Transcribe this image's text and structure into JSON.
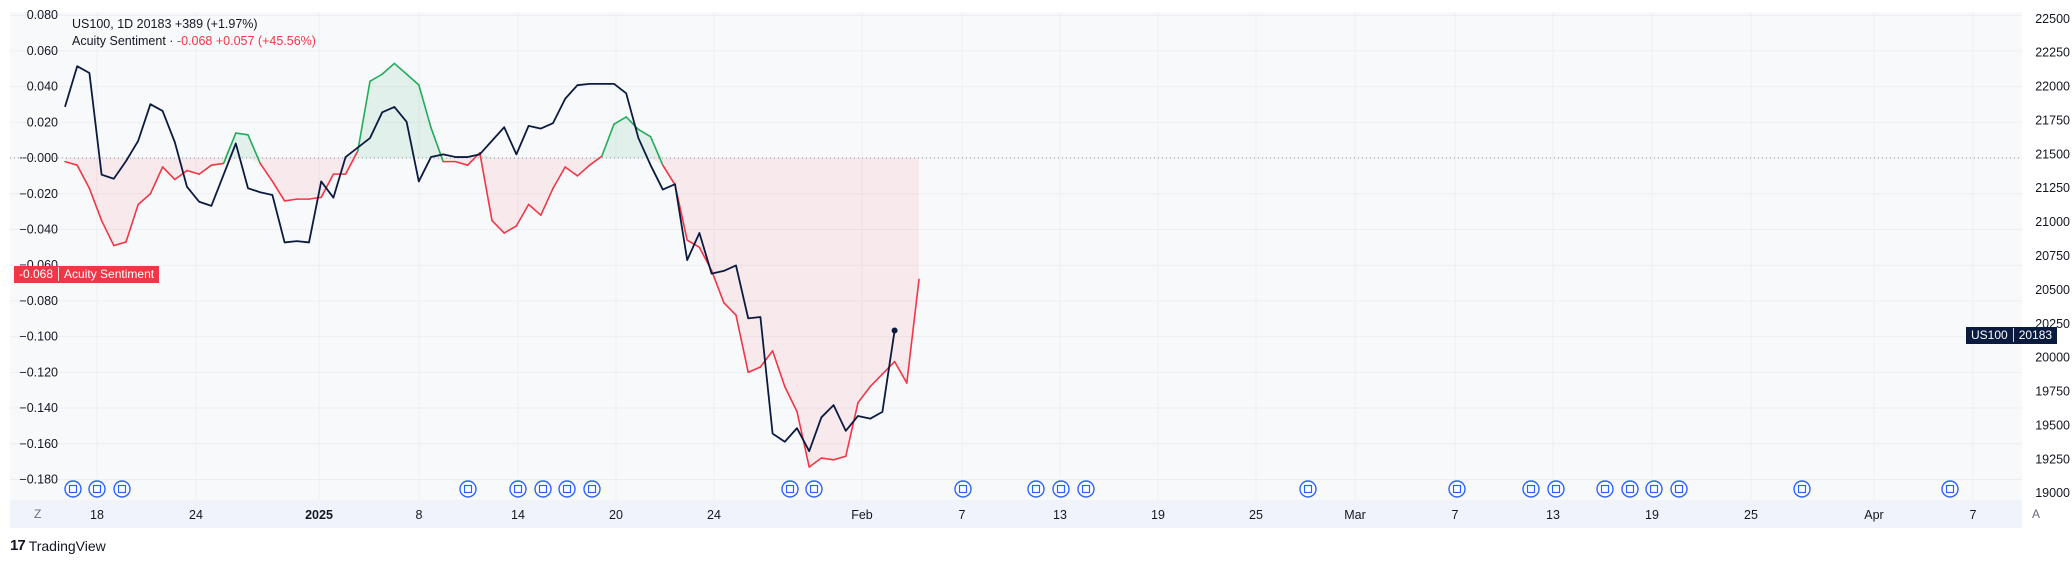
{
  "legend": {
    "main_symbol": "US100",
    "main_tf": "1D",
    "main_values": "20183  +389 (+1.97%)",
    "ind_name": "Acuity Sentiment",
    "ind_dot": "·",
    "ind_values": "-0.068  +0.057 (+45.56%)"
  },
  "tags": {
    "sent_value": "-0.068",
    "sent_name": "Acuity Sentiment",
    "price_symbol": "US100",
    "price_value": "20183"
  },
  "footer": {
    "brand_text": "TradingView",
    "left_corner": "Z",
    "right_corner": "A"
  },
  "chart_data": {
    "type": "line",
    "x_tick_labels": [
      "18",
      "24",
      "2025",
      "8",
      "14",
      "20",
      "24",
      "Feb",
      "7",
      "13",
      "19",
      "25",
      "Mar",
      "7",
      "13",
      "19",
      "25",
      "Apr",
      "7"
    ],
    "y_left_ticks": [
      "0.080",
      "0.060",
      "0.040",
      "0.020",
      "−0.000",
      "−0.020",
      "−0.040",
      "−0.060",
      "−0.080",
      "−0.100",
      "−0.120",
      "−0.140",
      "−0.160",
      "−0.180"
    ],
    "y_left_range": [
      -0.1915,
      0.0818
    ],
    "y_right_ticks": [
      "22500",
      "22250",
      "22000",
      "21750",
      "21500",
      "21250",
      "21000",
      "20750",
      "20500",
      "20250",
      "20000",
      "19750",
      "19500",
      "19250",
      "19000"
    ],
    "y_right_range": [
      18950,
      22550
    ],
    "series": [
      {
        "name": "US100",
        "axis": "right",
        "color": "#0b1b3f",
        "values": [
          21850,
          22150,
          22100,
          21350,
          21320,
          21450,
          21600,
          21870,
          21820,
          21590,
          21260,
          21150,
          21120,
          21350,
          21580,
          21250,
          21220,
          21200,
          20850,
          20860,
          20850,
          21300,
          21180,
          21480,
          21550,
          21620,
          21810,
          21850,
          21740,
          21300,
          21480,
          21500,
          21480,
          21480,
          21500,
          21600,
          21700,
          21500,
          21710,
          21690,
          21730,
          21910,
          22010,
          22020,
          22020,
          22020,
          21950,
          21620,
          21420,
          21240,
          21280,
          20720,
          20920,
          20620,
          20640,
          20680,
          20290,
          20300,
          19440,
          19380,
          19480,
          19310,
          19560,
          19650,
          19460,
          19570,
          19550,
          19600,
          20200
        ]
      },
      {
        "name": "Acuity Sentiment",
        "axis": "left",
        "color_negative": "#f23645",
        "color_positive": "#22ab5a",
        "values": [
          -0.002,
          -0.004,
          -0.017,
          -0.035,
          -0.049,
          -0.047,
          -0.026,
          -0.02,
          -0.005,
          -0.012,
          -0.007,
          -0.009,
          -0.004,
          -0.003,
          0.014,
          0.013,
          -0.003,
          -0.013,
          -0.024,
          -0.023,
          -0.023,
          -0.022,
          -0.009,
          -0.009,
          0.004,
          0.043,
          0.047,
          0.053,
          0.047,
          0.041,
          0.017,
          -0.002,
          -0.002,
          -0.004,
          0.003,
          -0.035,
          -0.042,
          -0.038,
          -0.026,
          -0.032,
          -0.017,
          -0.005,
          -0.01,
          -0.004,
          0.001,
          0.019,
          0.023,
          0.016,
          0.012,
          -0.004,
          -0.015,
          -0.046,
          -0.05,
          -0.063,
          -0.081,
          -0.088,
          -0.12,
          -0.117,
          -0.108,
          -0.128,
          -0.142,
          -0.173,
          -0.168,
          -0.169,
          -0.167,
          -0.137,
          -0.128,
          -0.121,
          -0.114,
          -0.126,
          -0.068
        ]
      }
    ],
    "event_markers": 29,
    "grid": true,
    "zero_line": "dotted"
  }
}
